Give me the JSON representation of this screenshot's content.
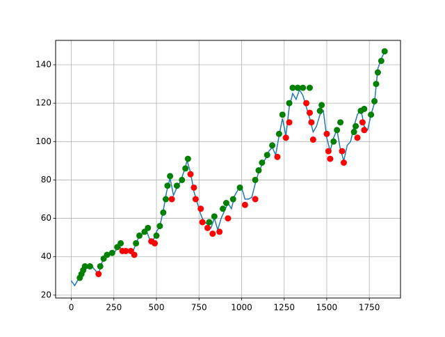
{
  "chart_data": {
    "type": "line",
    "xlim": [
      -92,
      1933
    ],
    "ylim": [
      18.5,
      152.7
    ],
    "xticks": [
      0,
      250,
      500,
      750,
      1000,
      1250,
      1500,
      1750
    ],
    "yticks": [
      20,
      40,
      60,
      80,
      100,
      120,
      140
    ],
    "grid": true,
    "series": [
      {
        "type": "line",
        "color": "#1f77b4",
        "x": [
          0,
          20,
          40,
          60,
          80,
          100,
          120,
          140,
          160,
          180,
          200,
          220,
          240,
          260,
          280,
          300,
          320,
          340,
          360,
          380,
          400,
          420,
          440,
          460,
          480,
          500,
          520,
          540,
          560,
          580,
          600,
          620,
          640,
          660,
          680,
          700,
          720,
          740,
          760,
          780,
          800,
          820,
          840,
          860,
          880,
          900,
          920,
          940,
          960,
          980,
          1000,
          1020,
          1040,
          1060,
          1080,
          1100,
          1120,
          1140,
          1160,
          1180,
          1200,
          1220,
          1240,
          1260,
          1280,
          1300,
          1320,
          1340,
          1360,
          1380,
          1400,
          1420,
          1440,
          1460,
          1480,
          1500,
          1520,
          1540,
          1560,
          1580,
          1600,
          1620,
          1640,
          1660,
          1680,
          1700,
          1720,
          1740,
          1760,
          1780,
          1800,
          1820,
          1840
        ],
        "values": [
          27.5,
          25,
          28,
          31,
          34,
          34,
          35,
          33,
          31,
          37,
          41,
          41,
          42,
          43,
          46,
          43,
          44,
          43,
          42,
          47,
          51,
          52,
          54,
          49,
          48,
          53,
          56,
          64,
          74,
          81,
          72,
          76,
          79,
          84,
          90,
          84,
          74,
          68,
          62,
          58,
          57,
          55,
          60,
          54,
          60,
          64,
          68,
          65,
          72,
          75,
          76,
          70,
          70,
          71,
          78,
          84,
          88,
          91,
          95,
          97,
          93,
          103,
          112,
          103,
          118,
          125,
          122,
          127,
          124,
          118,
          112,
          105,
          108,
          114,
          116,
          102,
          95,
          102,
          106,
          96,
          90,
          98,
          100,
          108,
          114,
          117,
          108,
          106,
          114,
          120,
          138,
          143,
          147
        ]
      },
      {
        "type": "scatter",
        "color": "green",
        "x": [
          50,
          60,
          70,
          80,
          110,
          170,
          190,
          210,
          240,
          270,
          290,
          380,
          400,
          430,
          450,
          500,
          520,
          540,
          555,
          565,
          580,
          620,
          650,
          670,
          685,
          810,
          840,
          890,
          910,
          950,
          990,
          1080,
          1100,
          1120,
          1150,
          1180,
          1220,
          1240,
          1280,
          1300,
          1330,
          1360,
          1400,
          1460,
          1470,
          1540,
          1560,
          1580,
          1660,
          1670,
          1700,
          1720,
          1760,
          1780,
          1790,
          1800,
          1820,
          1840
        ],
        "values": [
          29,
          31,
          33,
          35,
          35,
          35,
          39,
          41,
          42,
          45,
          47,
          47,
          51,
          53,
          55,
          51,
          56,
          63,
          70,
          77,
          82,
          77,
          80,
          86,
          91,
          58,
          61,
          65,
          68,
          70,
          76,
          80,
          85,
          89,
          93,
          98,
          104,
          114,
          120,
          128,
          128,
          128,
          128,
          116,
          119,
          100,
          106,
          110,
          105,
          108,
          116,
          117,
          114,
          121,
          130,
          136,
          142,
          147
        ]
      },
      {
        "type": "scatter",
        "color": "red",
        "x": [
          160,
          300,
          320,
          350,
          370,
          470,
          490,
          590,
          700,
          720,
          730,
          760,
          770,
          800,
          830,
          870,
          920,
          1020,
          1080,
          1210,
          1260,
          1280,
          1380,
          1400,
          1410,
          1420,
          1500,
          1510,
          1520,
          1590,
          1600,
          1680,
          1710,
          1720
        ],
        "values": [
          31,
          43,
          43,
          43,
          41,
          48,
          47,
          70,
          83,
          76,
          70,
          65,
          58,
          55,
          52,
          53,
          60,
          67,
          70,
          92,
          102,
          110,
          120,
          115,
          110,
          101,
          104,
          95,
          91,
          95,
          89,
          102,
          110,
          106
        ]
      }
    ]
  }
}
